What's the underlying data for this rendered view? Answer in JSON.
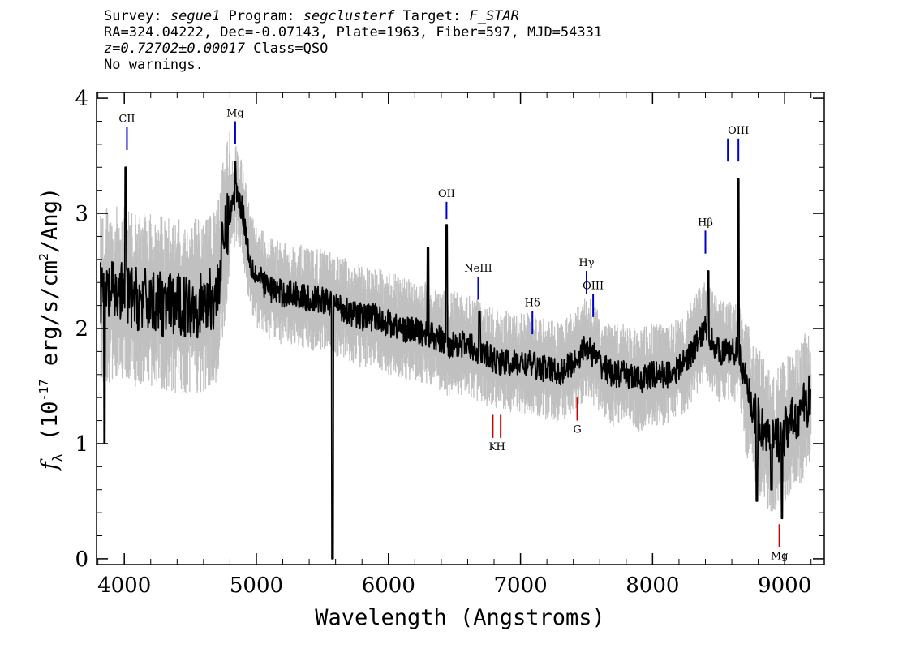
{
  "header": {
    "survey_label": "Survey:",
    "survey": "segue1",
    "program_label": "Program:",
    "program": "segclusterf",
    "target_label": "Target:",
    "target": "F_STAR",
    "line2": "RA=324.04222, Dec=-0.07143, Plate=1963, Fiber=597, MJD=54331",
    "redshift": "z=0.72702±0.00017",
    "class_text": "Class=QSO",
    "warnings": "No warnings."
  },
  "chart_data": {
    "type": "line",
    "title": "",
    "xlabel": "Wavelength (Angstroms)",
    "ylabel_prefix": "f",
    "ylabel_sub": "λ",
    "ylabel_open": "(10",
    "ylabel_exp": "-17",
    "ylabel_units": "erg/s/cm",
    "ylabel_sq": "2",
    "ylabel_tail": "/Ang)",
    "xlim": [
      3790,
      9300
    ],
    "ylim": [
      -0.05,
      4.05
    ],
    "xticks": [
      4000,
      5000,
      6000,
      7000,
      8000,
      9000
    ],
    "yticks": [
      0,
      1,
      2,
      3,
      4
    ],
    "colors": {
      "flux": "#000000",
      "noise": "#c0c0c0",
      "emission": "#0000cc",
      "absorption": "#cc0000"
    },
    "spectrum": {
      "x": [
        3820,
        3900,
        4000,
        4100,
        4200,
        4300,
        4400,
        4500,
        4600,
        4700,
        4760,
        4800,
        4850,
        4900,
        4950,
        5000,
        5100,
        5200,
        5300,
        5400,
        5500,
        5580,
        5600,
        5700,
        5800,
        5900,
        6000,
        6100,
        6200,
        6300,
        6400,
        6450,
        6500,
        6600,
        6700,
        6800,
        6900,
        7000,
        7100,
        7200,
        7300,
        7400,
        7500,
        7600,
        7700,
        7800,
        7900,
        8000,
        8100,
        8200,
        8300,
        8400,
        8500,
        8600,
        8660,
        8700,
        8800,
        8900,
        9000,
        9100,
        9200
      ],
      "y": [
        2.3,
        2.3,
        2.3,
        2.25,
        2.25,
        2.2,
        2.2,
        2.2,
        2.2,
        2.3,
        2.8,
        3.0,
        3.2,
        3.0,
        2.6,
        2.45,
        2.35,
        2.3,
        2.3,
        2.25,
        2.25,
        2.2,
        2.2,
        2.15,
        2.1,
        2.1,
        2.05,
        2.0,
        1.98,
        1.95,
        1.9,
        1.85,
        1.88,
        1.85,
        1.8,
        1.72,
        1.7,
        1.7,
        1.68,
        1.65,
        1.62,
        1.7,
        1.85,
        1.7,
        1.6,
        1.6,
        1.55,
        1.6,
        1.6,
        1.65,
        1.8,
        2.0,
        1.8,
        1.8,
        1.8,
        1.5,
        1.2,
        1.0,
        1.1,
        1.25,
        1.4
      ]
    },
    "spikes": [
      {
        "x": 3850,
        "y": 1.0
      },
      {
        "x": 4010,
        "y": 3.4
      },
      {
        "x": 4840,
        "y": 3.45
      },
      {
        "x": 5577,
        "y": 0.0
      },
      {
        "x": 6300,
        "y": 2.7
      },
      {
        "x": 6440,
        "y": 2.9
      },
      {
        "x": 6690,
        "y": 2.15
      },
      {
        "x": 8420,
        "y": 2.5
      },
      {
        "x": 8650,
        "y": 3.3
      },
      {
        "x": 8790,
        "y": 0.5
      },
      {
        "x": 8900,
        "y": 0.6
      },
      {
        "x": 8980,
        "y": 0.35
      }
    ],
    "emission_lines": [
      {
        "label": "CII",
        "x": 4020,
        "y1": 3.55,
        "y2": 3.75
      },
      {
        "label": "Mg",
        "x": 4840,
        "y1": 3.6,
        "y2": 3.8
      },
      {
        "label": "OII",
        "x": 6440,
        "y1": 2.95,
        "y2": 3.1
      },
      {
        "label": "NeIII",
        "x": 6680,
        "y1": 2.25,
        "y2": 2.45
      },
      {
        "label": "Hδ",
        "x": 7090,
        "y1": 1.95,
        "y2": 2.15
      },
      {
        "label": "Hγ",
        "x": 7500,
        "y1": 2.3,
        "y2": 2.5
      },
      {
        "label": "OIII",
        "x": 7550,
        "y1": 2.1,
        "y2": 2.3
      },
      {
        "label": "Hβ",
        "x": 8400,
        "y1": 2.65,
        "y2": 2.85
      },
      {
        "label": "",
        "x": 8570,
        "y1": 3.45,
        "y2": 3.65
      },
      {
        "label": "OIII",
        "x": 8650,
        "y1": 3.45,
        "y2": 3.65
      }
    ],
    "absorption_lines": [
      {
        "label": "K",
        "x": 6790,
        "y1": 1.05,
        "y2": 1.25
      },
      {
        "label": "H",
        "x": 6850,
        "y1": 1.05,
        "y2": 1.25
      },
      {
        "label": "G",
        "x": 7430,
        "y1": 1.2,
        "y2": 1.4
      },
      {
        "label": "Mg",
        "x": 8960,
        "y1": 0.1,
        "y2": 0.3
      }
    ]
  }
}
